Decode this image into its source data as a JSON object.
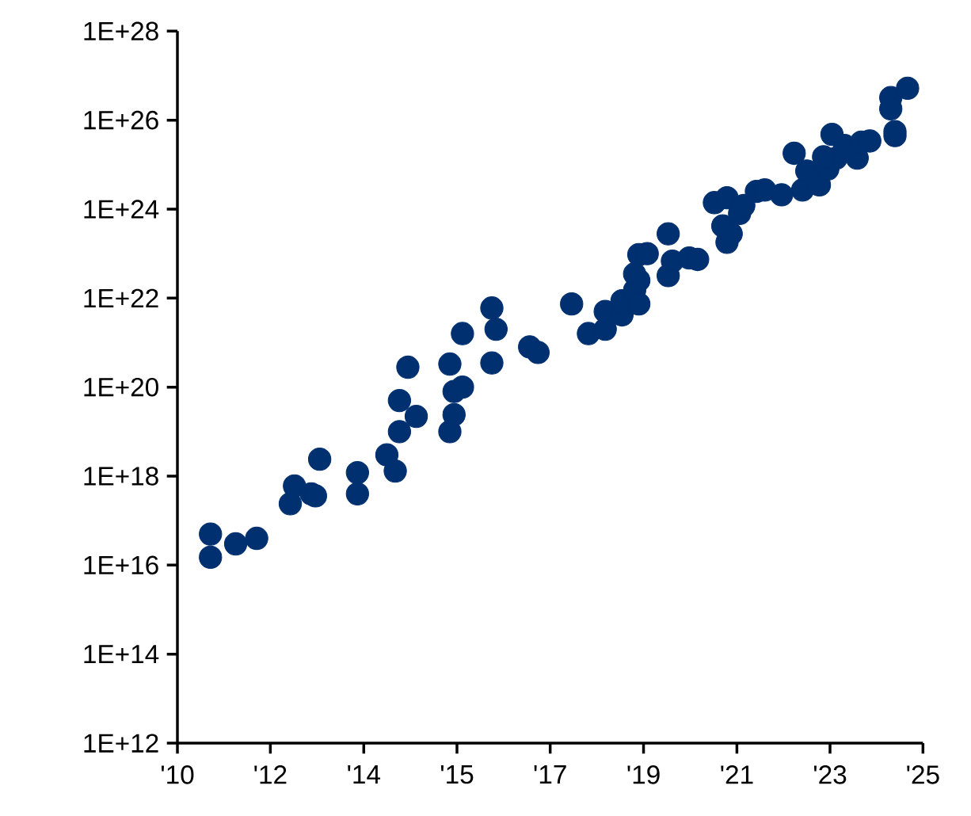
{
  "chart_data": {
    "type": "scatter",
    "log": "y",
    "marker": "circle",
    "xlim": [
      "2010-04-20",
      "2025-02-06"
    ],
    "xticks": [
      {
        "value": "2010-04-20",
        "label": "'10"
      },
      {
        "value": "2012-02-24",
        "label": "'12"
      },
      {
        "value": "2014-01-01",
        "label": "'14"
      },
      {
        "value": "2015-11-07",
        "label": "'15"
      },
      {
        "value": "2017-09-13",
        "label": "'17"
      },
      {
        "value": "2019-07-20",
        "label": "'19"
      },
      {
        "value": "2021-05-27",
        "label": "'21"
      },
      {
        "value": "2023-04-02",
        "label": "'23"
      },
      {
        "value": "2025-02-06",
        "label": "'25"
      }
    ],
    "ylim": [
      1000000000000.0,
      1e+28
    ],
    "yticks": [
      {
        "value": 1000000000000.0,
        "label": "1E+12"
      },
      {
        "value": 100000000000000.0,
        "label": "1E+14"
      },
      {
        "value": 1e+16,
        "label": "1E+16"
      },
      {
        "value": 1e+18,
        "label": "1E+18"
      },
      {
        "value": 1e+20,
        "label": "1E+20"
      },
      {
        "value": 1e+22,
        "label": "1E+22"
      },
      {
        "value": 1e+24,
        "label": "1E+24"
      },
      {
        "value": 1e+26,
        "label": "1E+26"
      },
      {
        "value": 1e+28,
        "label": "1E+28"
      }
    ],
    "series": [
      {
        "color": "#003070",
        "x": [
          "2010-12",
          "2010-12",
          "2011-06",
          "2011-11",
          "2012-07",
          "2012-08",
          "2012-12",
          "2013-01",
          "2013-02",
          "2013-11",
          "2013-11",
          "2014-06",
          "2014-08",
          "2014-09",
          "2014-09",
          "2015-01",
          "2014-11",
          "2015-09",
          "2015-09",
          "2015-10",
          "2015-10",
          "2015-12",
          "2015-12",
          "2016-07",
          "2016-08",
          "2016-07",
          "2017-04",
          "2017-06",
          "2018-02",
          "2018-06",
          "2018-10",
          "2018-10",
          "2019-02",
          "2019-02",
          "2019-05",
          "2019-06",
          "2019-06",
          "2019-05",
          "2019-06",
          "2019-08",
          "2020-01",
          "2020-01",
          "2020-02",
          "2020-06",
          "2020-08",
          "2020-12",
          "2021-03",
          "2021-02",
          "2021-03",
          "2021-04",
          "2021-06",
          "2021-07",
          "2021-10",
          "2021-12",
          "2022-04",
          "2022-09",
          "2022-10",
          "2023-01",
          "2023-03",
          "2023-05",
          "2023-10",
          "2022-07",
          "2023-04",
          "2023-02",
          "2023-07",
          "2023-11",
          "2024-01",
          "2024-06",
          "2024-06",
          "2024-07",
          "2024-07",
          "2024-10"
        ],
        "values": [
          5e+16,
          1.5e+16,
          3e+16,
          4e+16,
          2.4e+17,
          6e+17,
          4e+17,
          3.6e+17,
          2.4e+18,
          1.2e+18,
          4e+17,
          3e+18,
          1.3e+18,
          1e+19,
          5e+19,
          2.2e+19,
          2.8e+20,
          3.3e+20,
          1e+19,
          2.4e+19,
          8e+19,
          1e+20,
          1.6e+21,
          6e+21,
          2e+21,
          3.5e+20,
          8e+20,
          6e+20,
          7.4e+21,
          1.6e+21,
          2e+21,
          5e+21,
          4.2e+21,
          8.7e+21,
          1.5e+22,
          2.5e+22,
          7.4e+21,
          3.5e+22,
          9.5e+22,
          1e+23,
          2.8e+23,
          3.2e+22,
          6.8e+22,
          8e+22,
          7.4e+22,
          1.4e+24,
          1.8e+24,
          4.2e+23,
          1.8e+23,
          2.8e+23,
          8e+23,
          1.2e+24,
          2.5e+24,
          2.7e+24,
          2.1e+24,
          2.7e+24,
          7.2e+24,
          3.5e+24,
          8e+24,
          1.4e+25,
          1.4e+25,
          1.8e+25,
          4.8e+25,
          1.5e+25,
          2.7e+25,
          3.2e+25,
          3.4e+25,
          3.2e+26,
          1.8e+26,
          4.5e+25,
          5.5e+25,
          5.2e+26
        ]
      }
    ]
  }
}
